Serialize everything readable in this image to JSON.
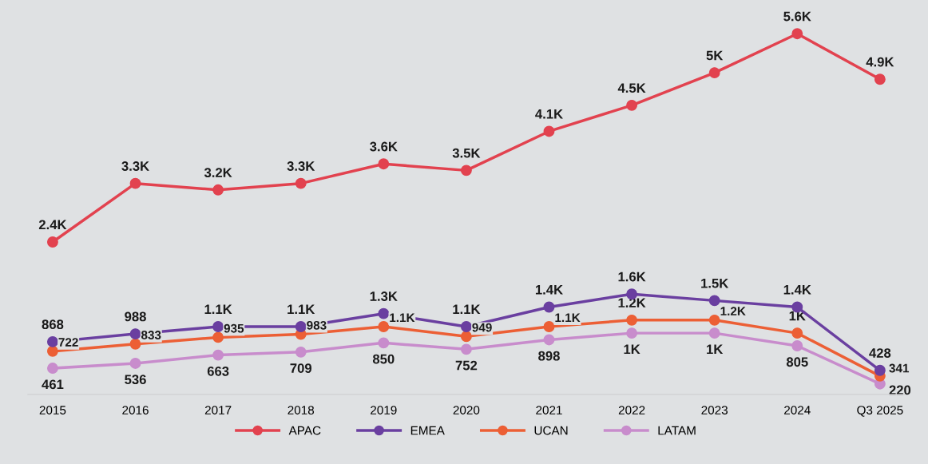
{
  "chart_data": {
    "type": "line",
    "categories": [
      "2015",
      "2016",
      "2017",
      "2018",
      "2019",
      "2020",
      "2021",
      "2022",
      "2023",
      "2024",
      "Q3 2025"
    ],
    "tick_labels": "x",
    "grid": false,
    "legend": "bottom",
    "marker": "circle",
    "line_style": "solid",
    "series": [
      {
        "name": "APAC",
        "color": "#e2424f",
        "values": [
          2400,
          3300,
          3200,
          3300,
          3600,
          3500,
          4100,
          4500,
          5000,
          5600,
          4900
        ],
        "value_labels": [
          "2.4K",
          "3.3K",
          "3.2K",
          "3.3K",
          "3.6K",
          "3.5K",
          "4.1K",
          "4.5K",
          "5K",
          "5.6K",
          "4.9K"
        ]
      },
      {
        "name": "EMEA",
        "color": "#6a3fa0",
        "values": [
          868,
          988,
          1100,
          1100,
          1300,
          1100,
          1400,
          1600,
          1500,
          1400,
          428
        ],
        "value_labels": [
          "868",
          "988",
          "1.1K",
          "1.1K",
          "1.3K",
          "1.1K",
          "1.4K",
          "1.6K",
          "1.5K",
          "1.4K",
          "428"
        ]
      },
      {
        "name": "UCAN",
        "color": "#ec5f35",
        "values": [
          722,
          833,
          935,
          983,
          1100,
          949,
          1100,
          1200,
          1200,
          1000,
          341
        ],
        "value_labels": [
          "722",
          "833",
          "935",
          "983",
          "1.1K",
          "949",
          "1.1K",
          "1.2K",
          "1.2K",
          "1K",
          "341"
        ]
      },
      {
        "name": "LATAM",
        "color": "#c88ccc",
        "values": [
          461,
          536,
          663,
          709,
          850,
          752,
          898,
          1000,
          1000,
          805,
          220
        ],
        "value_labels": [
          "461",
          "536",
          "663",
          "709",
          "850",
          "752",
          "898",
          "1K",
          "1K",
          "805",
          "220"
        ]
      }
    ]
  }
}
